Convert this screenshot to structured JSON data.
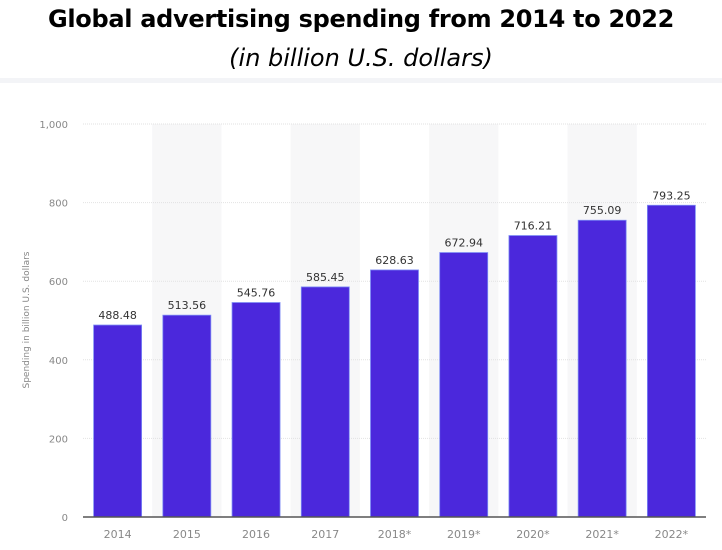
{
  "chart_data": {
    "type": "bar",
    "title": "Global advertising spending from 2014 to 2022",
    "subtitle": "(in billion U.S. dollars)",
    "xlabel": "",
    "ylabel": "Spending in billion U.S. dollars",
    "categories": [
      "2014",
      "2015",
      "2016",
      "2017",
      "2018*",
      "2019*",
      "2020*",
      "2021*",
      "2022*"
    ],
    "values": [
      488.48,
      513.56,
      545.76,
      585.45,
      628.63,
      672.94,
      716.21,
      755.09,
      793.25
    ],
    "data_labels": [
      "488.48",
      "513.56",
      "545.76",
      "585.45",
      "628.63",
      "672.94",
      "716.21",
      "755.09",
      "793.25"
    ],
    "ylim": [
      0,
      1000
    ],
    "yticks": [
      0,
      200,
      400,
      600,
      800,
      1000
    ],
    "ytick_labels": [
      "0",
      "200",
      "400",
      "600",
      "800",
      "1,000"
    ],
    "grid": true,
    "bar_color": "#4b28dc"
  }
}
